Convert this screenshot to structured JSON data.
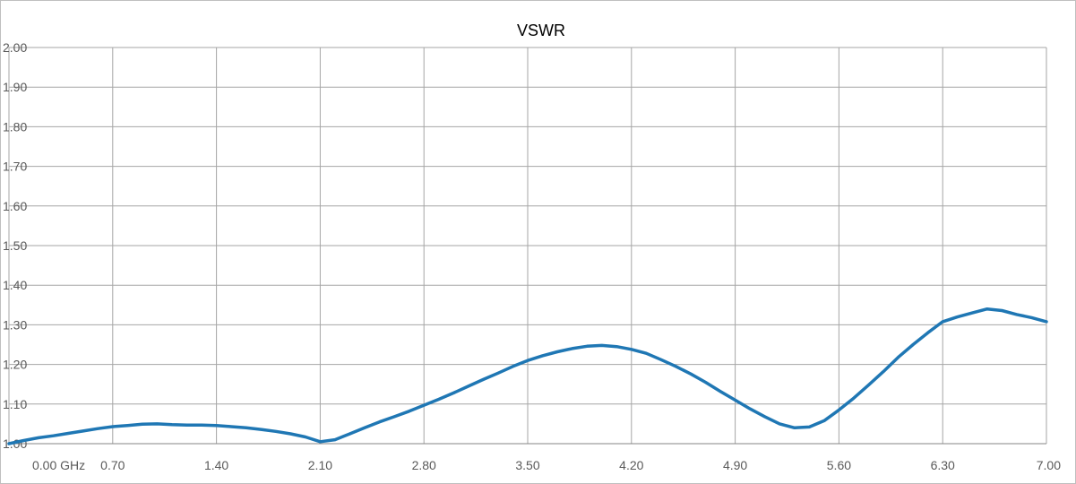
{
  "chart_data": {
    "type": "line",
    "title": "VSWR",
    "xlabel": "",
    "ylabel": "",
    "xlim": [
      0,
      7
    ],
    "ylim": [
      1.0,
      2.0
    ],
    "grid": true,
    "legend": "none",
    "x_tick_values": [
      0,
      0.7,
      1.4,
      2.1,
      2.8,
      3.5,
      4.2,
      4.9,
      5.6,
      6.3,
      7.0
    ],
    "x_tick_labels": [
      "0.00 GHz",
      "0.70",
      "1.40",
      "2.10",
      "2.80",
      "3.50",
      "4.20",
      "4.90",
      "5.60",
      "6.30",
      "7.00"
    ],
    "y_tick_values": [
      1.0,
      1.1,
      1.2,
      1.3,
      1.4,
      1.5,
      1.6,
      1.7,
      1.8,
      1.9,
      2.0
    ],
    "y_tick_labels": [
      "1.00",
      "1.10",
      "1.20",
      "1.30",
      "1.40",
      "1.50",
      "1.60",
      "1.70",
      "1.80",
      "1.90",
      "2.00"
    ],
    "series": [
      {
        "color": "#1f77b4",
        "x": [
          0.0,
          0.1,
          0.2,
          0.3,
          0.4,
          0.5,
          0.6,
          0.7,
          0.8,
          0.9,
          1.0,
          1.1,
          1.2,
          1.3,
          1.4,
          1.5,
          1.6,
          1.7,
          1.8,
          1.9,
          2.0,
          2.1,
          2.2,
          2.3,
          2.4,
          2.5,
          2.6,
          2.7,
          2.8,
          2.9,
          3.0,
          3.1,
          3.2,
          3.3,
          3.4,
          3.5,
          3.6,
          3.7,
          3.8,
          3.9,
          4.0,
          4.1,
          4.2,
          4.3,
          4.4,
          4.5,
          4.6,
          4.7,
          4.8,
          4.9,
          5.0,
          5.1,
          5.2,
          5.3,
          5.4,
          5.5,
          5.6,
          5.7,
          5.8,
          5.9,
          6.0,
          6.1,
          6.2,
          6.3,
          6.4,
          6.5,
          6.6,
          6.7,
          6.8,
          6.9,
          7.0
        ],
        "values": [
          1.0,
          1.008,
          1.015,
          1.02,
          1.026,
          1.032,
          1.038,
          1.043,
          1.046,
          1.049,
          1.05,
          1.048,
          1.047,
          1.047,
          1.046,
          1.043,
          1.04,
          1.036,
          1.031,
          1.025,
          1.017,
          1.005,
          1.01,
          1.025,
          1.04,
          1.055,
          1.068,
          1.082,
          1.097,
          1.112,
          1.128,
          1.145,
          1.162,
          1.178,
          1.195,
          1.21,
          1.222,
          1.232,
          1.24,
          1.246,
          1.248,
          1.245,
          1.238,
          1.228,
          1.212,
          1.195,
          1.176,
          1.155,
          1.132,
          1.11,
          1.088,
          1.068,
          1.05,
          1.04,
          1.042,
          1.058,
          1.085,
          1.115,
          1.148,
          1.182,
          1.218,
          1.25,
          1.28,
          1.308,
          1.32,
          1.33,
          1.34,
          1.336,
          1.326,
          1.318,
          1.308
        ]
      }
    ]
  }
}
